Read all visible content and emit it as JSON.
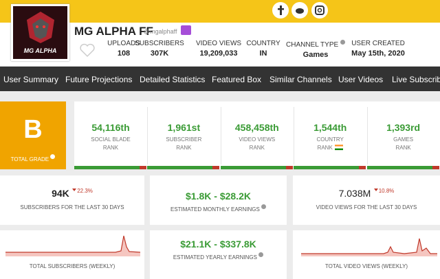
{
  "channel": {
    "name": "MG ALPHA FF",
    "handle": "@mgalphaff",
    "avatar_text": "MG ALPHA"
  },
  "stats": [
    {
      "label": "UPLOADS",
      "value": "108"
    },
    {
      "label": "SUBSCRIBERS",
      "value": "307K"
    },
    {
      "label": "VIDEO VIEWS",
      "value": "19,209,033"
    },
    {
      "label": "COUNTRY",
      "value": "IN"
    },
    {
      "label": "CHANNEL TYPE",
      "value": "Games"
    },
    {
      "label": "USER CREATED",
      "value": "May 15th, 2020"
    }
  ],
  "nav": [
    "User Summary",
    "Future Projections",
    "Detailed Statistics",
    "Featured Box",
    "Similar Channels",
    "User Videos",
    "Live Subscriber"
  ],
  "grade": {
    "letter": "B",
    "label": "TOTAL GRADE"
  },
  "ranks": [
    {
      "value": "54,116th",
      "label": [
        "SOCIAL BLADE",
        "RANK"
      ]
    },
    {
      "value": "1,961st",
      "label": [
        "SUBSCRIBER",
        "RANK"
      ]
    },
    {
      "value": "458,458th",
      "label": [
        "VIDEO VIEWS",
        "RANK"
      ]
    },
    {
      "value": "1,544th",
      "label": [
        "COUNTRY",
        "RANK"
      ]
    },
    {
      "value": "1,393rd",
      "label": [
        "GAMES",
        "RANK"
      ]
    }
  ],
  "summary": [
    {
      "value": "94K",
      "change": "22.3%",
      "label": "SUBSCRIBERS FOR THE LAST 30 DAYS"
    },
    {
      "value": "$1.8K - $28.2K",
      "label": "ESTIMATED MONTHLY EARNINGS"
    },
    {
      "value": "7.038M",
      "change": "10.8%",
      "label": "VIDEO VIEWS FOR THE LAST 30 DAYS"
    }
  ],
  "bottom": [
    {
      "label": "TOTAL SUBSCRIBERS (WEEKLY)"
    },
    {
      "value": "$21.1K - $337.8K",
      "label": "ESTIMATED YEARLY EARNINGS"
    },
    {
      "label": "TOTAL VIDEO VIEWS (WEEKLY)"
    }
  ]
}
